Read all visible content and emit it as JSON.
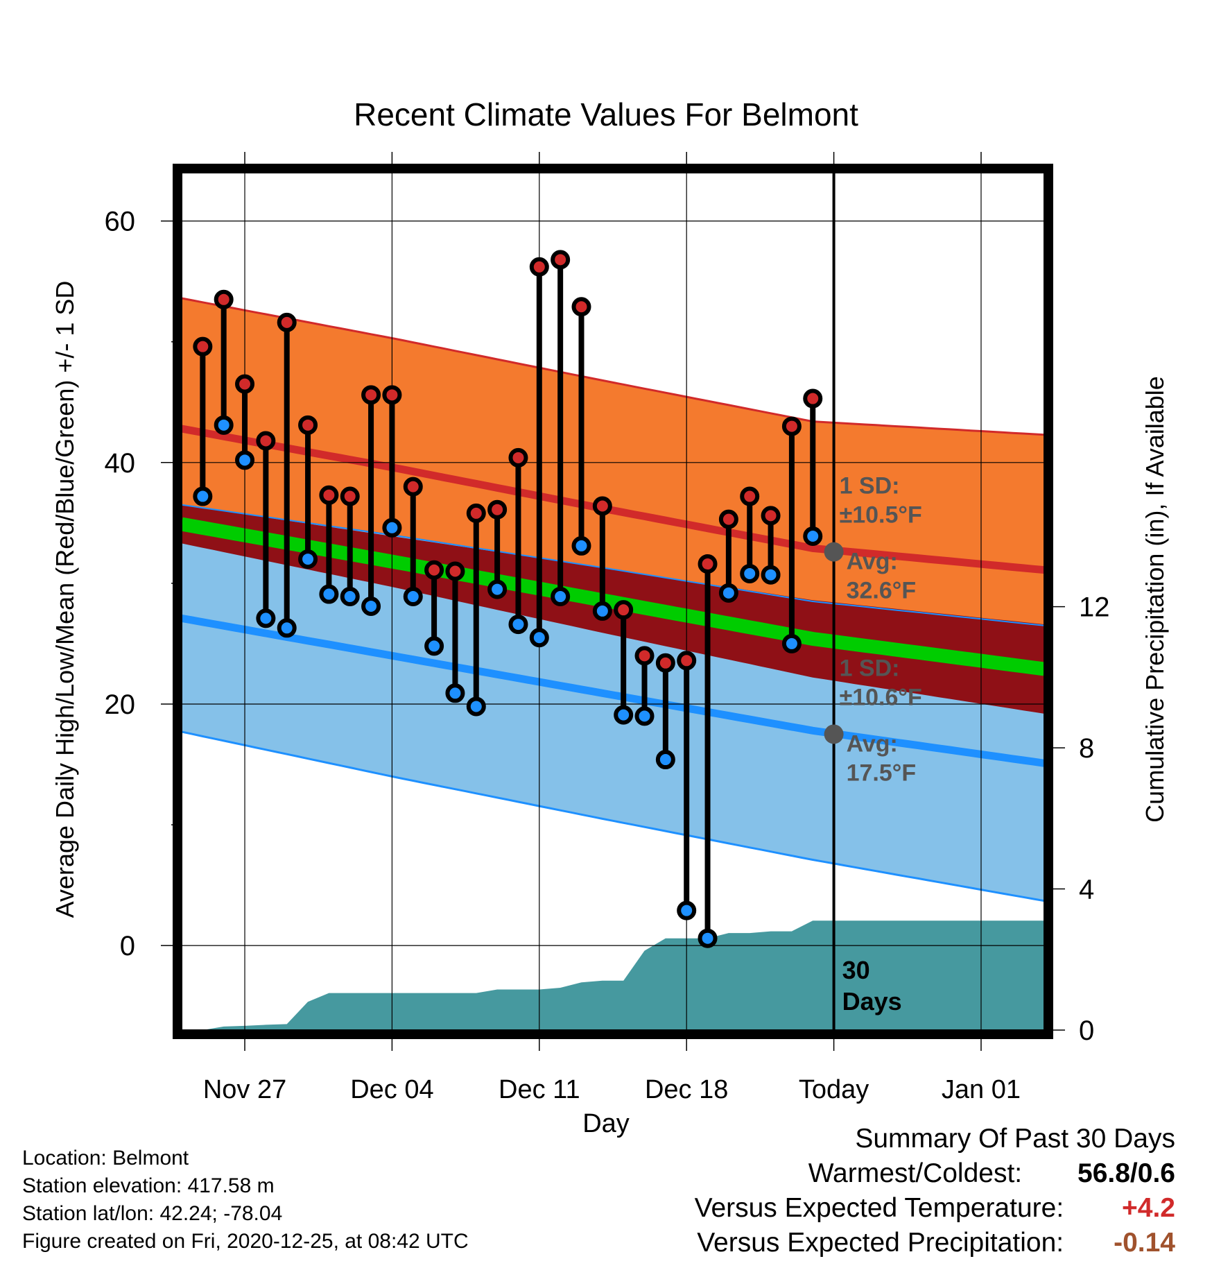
{
  "title": "Recent Climate Values For Belmont",
  "colors": {
    "high": "#d12a2a",
    "low": "#1e90ff",
    "mean": "#00cc00",
    "high_band": "#f47a2e",
    "low_band": "#85c1e9",
    "mean_band": "#8f1016",
    "precip": "#46999f",
    "annotation": "#555555",
    "temp_departure": "#d12a2a",
    "precip_departure": "#a0522d"
  },
  "footer": {
    "location": "Location: Belmont",
    "elevation": "Station elevation: 417.58 m",
    "latlon": "Station lat/lon: 42.24; -78.04",
    "created": "Figure created on Fri, 2020-12-25, at 08:42 UTC"
  },
  "summary": {
    "heading": "Summary Of Past 30 Days",
    "warmest_coldest_label": "Warmest/Coldest:",
    "warmest_coldest_value": "56.8/0.6",
    "temp_label": "Versus Expected Temperature:",
    "temp_value": "+4.2",
    "precip_label": "Versus Expected Precipitation:",
    "precip_value": "-0.14"
  },
  "chart_data": {
    "type": "line",
    "xlabel": "Day",
    "ylabel": "Average Daily High/Low/Mean (Red/Blue/Green) +/- 1 SD",
    "y2label": "Cumulative Precipitation (in), If Available",
    "x_range": [
      "2020-11-24",
      "2021-01-04"
    ],
    "ylim": [
      -7,
      64
    ],
    "y2lim": [
      0,
      24.3
    ],
    "x_ticks": [
      {
        "date": "2020-11-27",
        "label": "Nov 27"
      },
      {
        "date": "2020-12-04",
        "label": "Dec 04"
      },
      {
        "date": "2020-12-11",
        "label": "Dec 11"
      },
      {
        "date": "2020-12-18",
        "label": "Dec 18"
      },
      {
        "date": "2020-12-25",
        "label": "Today"
      },
      {
        "date": "2021-01-01",
        "label": "Jan 01"
      }
    ],
    "y_ticks": [
      0,
      20,
      40,
      60
    ],
    "y2_ticks": [
      0,
      4,
      8,
      12
    ],
    "grid": true,
    "today": "2020-12-25",
    "today_label": "30\nDays",
    "normals": {
      "dates": [
        "2020-11-24",
        "2020-12-04",
        "2020-12-14",
        "2020-12-24",
        "2021-01-04"
      ],
      "high_avg": [
        42.8,
        39.6,
        36.2,
        32.9,
        31.1
      ],
      "high_sd": [
        10.8,
        10.7,
        10.6,
        10.5,
        11.2
      ],
      "low_avg": [
        27.1,
        24.0,
        20.9,
        17.8,
        15.1
      ],
      "low_sd": [
        9.4,
        10.0,
        10.4,
        10.7,
        11.4
      ],
      "mean_avg": [
        34.9,
        31.8,
        28.6,
        25.4,
        22.9
      ],
      "mean_sd": [
        1.6,
        2.1,
        2.7,
        3.2,
        3.7
      ]
    },
    "annotations": {
      "high": {
        "sd_label": "1 SD:",
        "sd_value": "±10.5°F",
        "avg_label": "Avg:",
        "avg_value": "32.6°F",
        "avg": 32.6
      },
      "low": {
        "sd_label": "1 SD:",
        "sd_value": "±10.6°F",
        "avg_label": "Avg:",
        "avg_value": "17.5°F",
        "avg": 17.5
      }
    },
    "observed": {
      "dates": [
        "2020-11-25",
        "2020-11-26",
        "2020-11-27",
        "2020-11-28",
        "2020-11-29",
        "2020-11-30",
        "2020-12-01",
        "2020-12-02",
        "2020-12-03",
        "2020-12-04",
        "2020-12-05",
        "2020-12-06",
        "2020-12-07",
        "2020-12-08",
        "2020-12-09",
        "2020-12-10",
        "2020-12-11",
        "2020-12-12",
        "2020-12-13",
        "2020-12-14",
        "2020-12-15",
        "2020-12-16",
        "2020-12-17",
        "2020-12-18",
        "2020-12-19",
        "2020-12-20",
        "2020-12-21",
        "2020-12-22",
        "2020-12-23",
        "2020-12-24"
      ],
      "high": [
        49.6,
        53.5,
        46.5,
        41.8,
        51.6,
        43.1,
        37.3,
        37.2,
        45.6,
        45.6,
        38.0,
        31.1,
        31.0,
        35.8,
        36.1,
        40.4,
        56.2,
        56.8,
        52.9,
        36.4,
        27.8,
        24.0,
        23.4,
        23.6,
        31.6,
        35.3,
        37.2,
        35.6,
        43.0,
        45.3
      ],
      "low": [
        37.2,
        43.1,
        40.2,
        27.1,
        26.3,
        32.0,
        29.1,
        28.9,
        28.1,
        34.6,
        28.9,
        24.8,
        20.9,
        19.8,
        29.5,
        26.6,
        25.5,
        28.9,
        33.1,
        27.7,
        19.1,
        19.0,
        15.4,
        2.9,
        0.6,
        29.2,
        30.8,
        30.7,
        25.0,
        33.9
      ]
    },
    "precipitation": {
      "dates": [
        "2020-11-24",
        "2020-11-25",
        "2020-11-26",
        "2020-11-27",
        "2020-11-28",
        "2020-11-29",
        "2020-11-30",
        "2020-12-01",
        "2020-12-02",
        "2020-12-03",
        "2020-12-04",
        "2020-12-05",
        "2020-12-06",
        "2020-12-07",
        "2020-12-08",
        "2020-12-09",
        "2020-12-10",
        "2020-12-11",
        "2020-12-12",
        "2020-12-13",
        "2020-12-14",
        "2020-12-15",
        "2020-12-16",
        "2020-12-17",
        "2020-12-18",
        "2020-12-19",
        "2020-12-20",
        "2020-12-21",
        "2020-12-22",
        "2020-12-23",
        "2020-12-24",
        "2020-12-25",
        "2021-01-04"
      ],
      "cumulative": [
        0.0,
        0.0,
        0.1,
        0.12,
        0.15,
        0.17,
        0.8,
        1.05,
        1.05,
        1.05,
        1.05,
        1.05,
        1.05,
        1.05,
        1.05,
        1.15,
        1.15,
        1.15,
        1.2,
        1.35,
        1.4,
        1.4,
        2.25,
        2.6,
        2.6,
        2.6,
        2.75,
        2.75,
        2.8,
        2.8,
        3.1,
        3.1,
        3.1
      ]
    },
    "summary_window_days": 30
  }
}
